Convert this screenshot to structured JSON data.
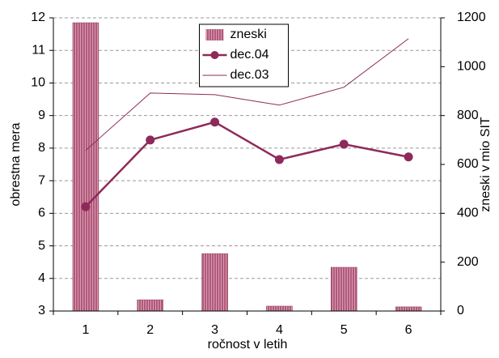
{
  "chart_data": {
    "type": "bar_line",
    "categories": [
      "1",
      "2",
      "3",
      "4",
      "5",
      "6"
    ],
    "series": [
      {
        "name": "zneski",
        "type": "bar",
        "axis": "y2",
        "color": "#b05a7a",
        "values": [
          1180,
          46,
          235,
          20,
          179,
          17
        ]
      },
      {
        "name": "dec.04",
        "type": "line",
        "marker": true,
        "color": "#8e2a5a",
        "values": [
          6.2,
          8.25,
          8.8,
          7.65,
          8.12,
          7.73
        ]
      },
      {
        "name": "dec.03",
        "type": "line",
        "marker": false,
        "color": "#8e2a5a",
        "values": [
          7.93,
          9.69,
          9.64,
          9.32,
          9.87,
          11.36
        ]
      }
    ],
    "xlabel": "ročnost v letih",
    "ylabel": "obrestna mera",
    "y2label": "zneski v mio SIT",
    "ylim": [
      3,
      12
    ],
    "yticks": [
      3,
      4,
      5,
      6,
      7,
      8,
      9,
      10,
      11,
      12
    ],
    "y2lim": [
      0,
      1200
    ],
    "y2ticks": [
      0,
      200,
      400,
      600,
      800,
      1000,
      1200
    ],
    "grid": true,
    "legend": "upper center"
  }
}
